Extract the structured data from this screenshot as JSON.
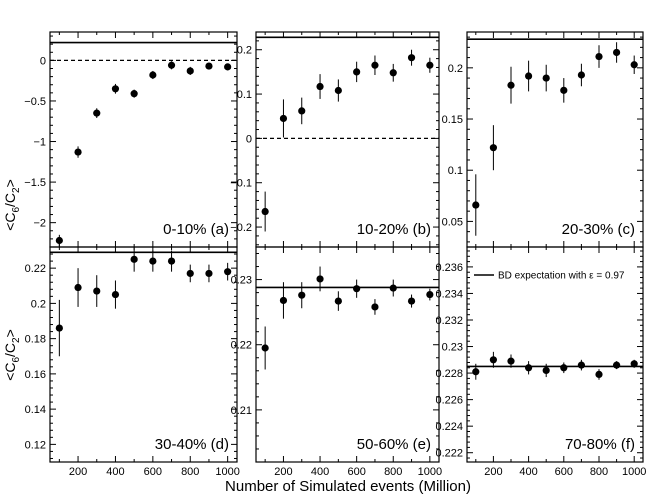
{
  "chart_data": {
    "type": "scatter",
    "xlabel": "Number of Simulated events (Million)",
    "ylabel": "<C6/C2>",
    "xlim": [
      50,
      1050
    ],
    "xticks": [
      200,
      400,
      600,
      800,
      1000
    ],
    "x": [
      100,
      200,
      300,
      400,
      500,
      600,
      700,
      800,
      900,
      1000
    ],
    "legend": "BD expectation with ε = 0.97",
    "panels": [
      {
        "label": "0-10% (a)",
        "ylim": [
          -2.3,
          0.35
        ],
        "yticks": [
          -2,
          -1.5,
          -1,
          -0.5,
          0
        ],
        "yticklabels": [
          "−2",
          "−1.5",
          "−1",
          "−0.5",
          "0"
        ],
        "expectation": 0.22,
        "zero_line": true,
        "values": [
          -2.22,
          -1.13,
          -0.65,
          -0.35,
          -0.41,
          -0.18,
          -0.06,
          -0.13,
          -0.07,
          -0.08
        ],
        "errors": [
          0.07,
          0.07,
          0.06,
          0.06,
          0.05,
          0.05,
          0.05,
          0.05,
          0.04,
          0.04
        ]
      },
      {
        "label": "10-20% (b)",
        "ylim": [
          -0.245,
          0.24
        ],
        "yticks": [
          -0.2,
          -0.1,
          0,
          0.1,
          0.2
        ],
        "yticklabels": [
          "−0.2",
          "−0.1",
          "0",
          "0.1",
          "0.2"
        ],
        "expectation": 0.228,
        "zero_line": true,
        "values": [
          -0.165,
          0.045,
          0.062,
          0.117,
          0.108,
          0.15,
          0.165,
          0.148,
          0.182,
          0.165
        ],
        "errors": [
          0.045,
          0.043,
          0.03,
          0.028,
          0.025,
          0.023,
          0.022,
          0.02,
          0.018,
          0.017
        ]
      },
      {
        "label": "20-30% (c)",
        "ylim": [
          0.025,
          0.235
        ],
        "yticks": [
          0.05,
          0.1,
          0.15,
          0.2
        ],
        "yticklabels": [
          "0.05",
          "0.1",
          "0.15",
          "0.2"
        ],
        "expectation": 0.228,
        "zero_line": false,
        "values": [
          0.066,
          0.122,
          0.183,
          0.192,
          0.19,
          0.178,
          0.193,
          0.211,
          0.215,
          0.203
        ],
        "errors": [
          0.03,
          0.022,
          0.018,
          0.015,
          0.013,
          0.012,
          0.011,
          0.011,
          0.01,
          0.009
        ]
      },
      {
        "label": "30-40% (d)",
        "ylim": [
          0.11,
          0.232
        ],
        "yticks": [
          0.12,
          0.14,
          0.16,
          0.18,
          0.2,
          0.22
        ],
        "yticklabels": [
          "0.12",
          "0.14",
          "0.16",
          "0.18",
          "0.2",
          "0.22"
        ],
        "expectation": 0.229,
        "zero_line": false,
        "values": [
          0.186,
          0.209,
          0.207,
          0.205,
          0.225,
          0.224,
          0.224,
          0.217,
          0.217,
          0.218
        ],
        "errors": [
          0.016,
          0.011,
          0.009,
          0.008,
          0.007,
          0.006,
          0.006,
          0.005,
          0.005,
          0.005
        ]
      },
      {
        "label": "50-60% (e)",
        "ylim": [
          0.202,
          0.235
        ],
        "yticks": [
          0.21,
          0.22,
          0.23
        ],
        "yticklabels": [
          "0.21",
          "0.22",
          "0.23"
        ],
        "expectation": 0.2288,
        "zero_line": false,
        "values": [
          0.2195,
          0.2268,
          0.2276,
          0.2301,
          0.2267,
          0.2286,
          0.2258,
          0.2287,
          0.2267,
          0.2277
        ],
        "errors": [
          0.0033,
          0.0028,
          0.002,
          0.0019,
          0.0015,
          0.0014,
          0.0012,
          0.0013,
          0.001,
          0.0009
        ]
      },
      {
        "label": "70-80% (f)",
        "ylim": [
          0.2213,
          0.2375
        ],
        "yticks": [
          0.222,
          0.224,
          0.226,
          0.228,
          0.23,
          0.232,
          0.234,
          0.236
        ],
        "yticklabels": [
          "0.222",
          "0.224",
          "0.226",
          "0.228",
          "0.23",
          "0.232",
          "0.234",
          "0.236"
        ],
        "expectation": 0.2285,
        "zero_line": false,
        "values": [
          0.2281,
          0.229,
          0.2289,
          0.2284,
          0.2282,
          0.2284,
          0.2286,
          0.2279,
          0.2286,
          0.2287
        ],
        "errors": [
          0.0006,
          0.0006,
          0.0005,
          0.0005,
          0.0005,
          0.0004,
          0.0004,
          0.0004,
          0.0003,
          0.0003
        ]
      }
    ]
  }
}
